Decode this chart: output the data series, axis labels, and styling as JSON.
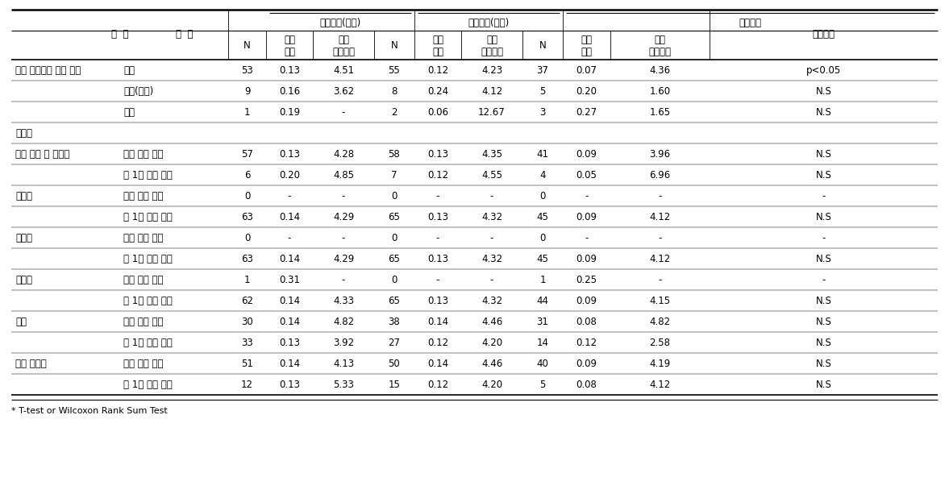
{
  "footnote": "* T-test or Wilcoxon Rank Sum Test",
  "group_labels": [
    "노출지역(남해)",
    "노출지역(하동)",
    "비교지역"
  ],
  "header_항목": "항  목",
  "header_구분": "구  분",
  "header_유의수준": "유의수준",
  "header_N": "N",
  "header_기하평균": "기하\n평균",
  "header_기하표준편차": "기하\n표준편차",
  "rows": [
    [
      "주로 즐겨먹는 음식 형태",
      "채식",
      "53",
      "0.13",
      "4.51",
      "55",
      "0.12",
      "4.23",
      "37",
      "0.07",
      "4.36",
      "p<0.05"
    ],
    [
      "",
      "고기(육류)",
      "9",
      "0.16",
      "3.62",
      "8",
      "0.24",
      "4.12",
      "5",
      "0.20",
      "1.60",
      "N.S"
    ],
    [
      "",
      "생선",
      "1",
      "0.19",
      "-",
      "2",
      "0.06",
      "12.67",
      "3",
      "0.27",
      "1.65",
      "N.S"
    ],
    [
      "해산물",
      "",
      "",
      "",
      "",
      "",
      "",
      "",
      "",
      "",
      "",
      ""
    ],
    [
      "대형 어류 및 참치류",
      "거의 먹지 않음",
      "57",
      "0.13",
      "4.28",
      "58",
      "0.13",
      "4.35",
      "41",
      "0.09",
      "3.96",
      "N.S"
    ],
    [
      "",
      "월 1회 이상 섭취",
      "6",
      "0.20",
      "4.85",
      "7",
      "0.12",
      "4.55",
      "4",
      "0.05",
      "6.96",
      "N.S"
    ],
    [
      "생선류",
      "거의 먹지 않음",
      "0",
      "-",
      "-",
      "0",
      "-",
      "-",
      "0",
      "-",
      "-",
      "-"
    ],
    [
      "",
      "월 1회 이상 섭취",
      "63",
      "0.14",
      "4.29",
      "65",
      "0.13",
      "4.32",
      "45",
      "0.09",
      "4.12",
      "N.S"
    ],
    [
      "갑각류",
      "거의 먹지 않음",
      "0",
      "-",
      "-",
      "0",
      "-",
      "-",
      "0",
      "-",
      "-",
      "-"
    ],
    [
      "",
      "월 1회 이상 섭취",
      "63",
      "0.14",
      "4.29",
      "65",
      "0.13",
      "4.32",
      "45",
      "0.09",
      "4.12",
      "N.S"
    ],
    [
      "해초류",
      "거의 먹지 않음",
      "1",
      "0.31",
      "-",
      "0",
      "-",
      "-",
      "1",
      "0.25",
      "-",
      "-"
    ],
    [
      "",
      "월 1회 이상 섭취",
      "62",
      "0.14",
      "4.33",
      "65",
      "0.13",
      "4.32",
      "44",
      "0.09",
      "4.15",
      "N.S"
    ],
    [
      "패류",
      "거의 먹지 않음",
      "30",
      "0.14",
      "4.82",
      "38",
      "0.14",
      "4.46",
      "31",
      "0.08",
      "4.82",
      "N.S"
    ],
    [
      "",
      "월 1회 이상 섭취",
      "33",
      "0.13",
      "3.92",
      "27",
      "0.12",
      "4.20",
      "14",
      "0.12",
      "2.58",
      "N.S"
    ],
    [
      "기타 해산물",
      "거의 먹지 않음",
      "51",
      "0.14",
      "4.13",
      "50",
      "0.14",
      "4.46",
      "40",
      "0.09",
      "4.19",
      "N.S"
    ],
    [
      "",
      "월 1회 이상 섭취",
      "12",
      "0.13",
      "5.33",
      "15",
      "0.12",
      "4.20",
      "5",
      "0.08",
      "4.12",
      "N.S"
    ]
  ],
  "bg_color": "#ffffff",
  "text_color": "#000000",
  "line_color": "#000000"
}
